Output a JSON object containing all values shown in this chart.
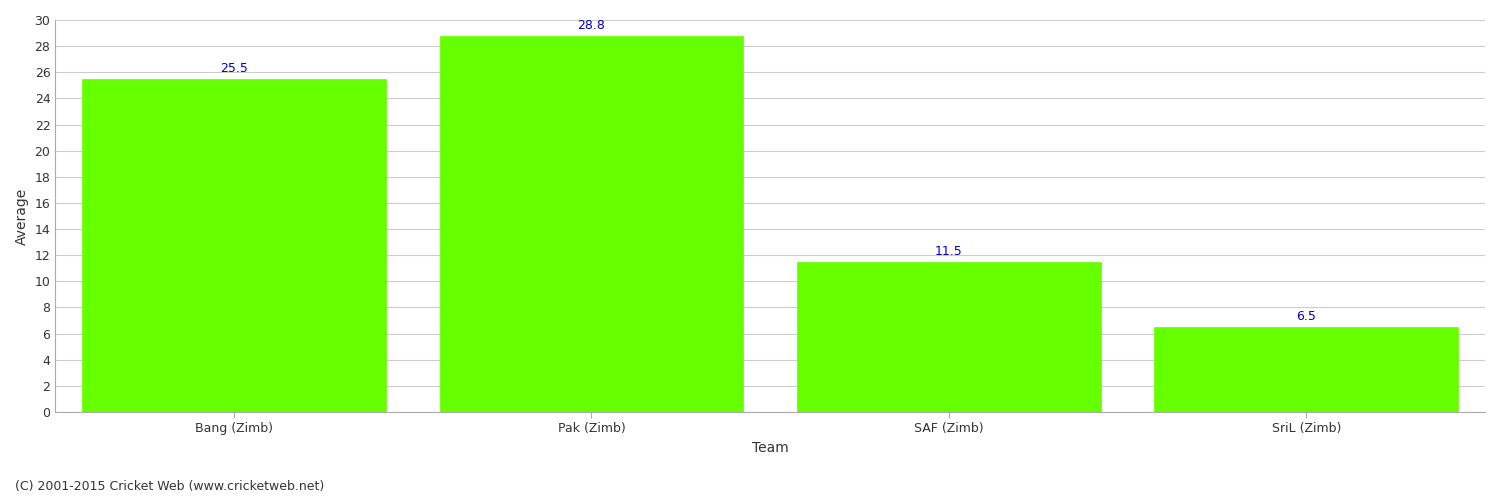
{
  "categories": [
    "Bang (Zimb)",
    "Pak (Zimb)",
    "SAF (Zimb)",
    "SriL (Zimb)"
  ],
  "values": [
    25.5,
    28.8,
    11.5,
    6.5
  ],
  "bar_color": "#66ff00",
  "bar_edge_color": "#66ff00",
  "label_color": "#0000cc",
  "xlabel": "Team",
  "ylabel": "Average",
  "ylim": [
    0,
    30
  ],
  "yticks": [
    0,
    2,
    4,
    6,
    8,
    10,
    12,
    14,
    16,
    18,
    20,
    22,
    24,
    26,
    28,
    30
  ],
  "grid_color": "#cccccc",
  "background_color": "#ffffff",
  "bar_width": 0.85,
  "label_fontsize": 9,
  "axis_label_fontsize": 10,
  "tick_fontsize": 9,
  "footer_text": "(C) 2001-2015 Cricket Web (www.cricketweb.net)",
  "footer_fontsize": 9
}
